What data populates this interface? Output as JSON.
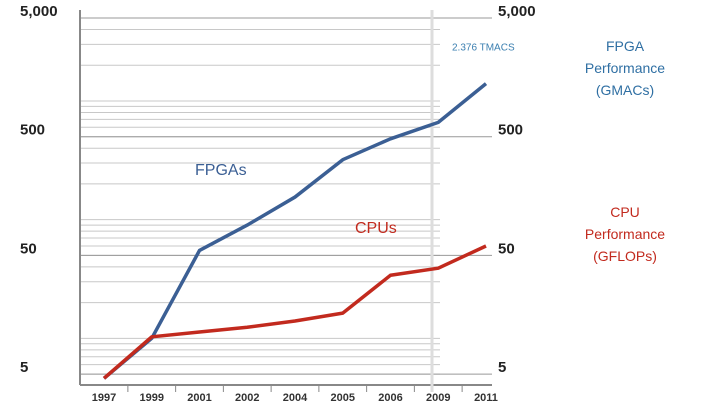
{
  "chart_data": {
    "type": "line",
    "categories": [
      "1997",
      "1999",
      "2001",
      "2002",
      "2004",
      "2005",
      "2006",
      "2009",
      "2011"
    ],
    "series": [
      {
        "name": "FPGAs",
        "color": "#3b5f94",
        "values": [
          4.6,
          10,
          55,
          90,
          155,
          320,
          480,
          660,
          1400
        ]
      },
      {
        "name": "CPUs",
        "color": "#c22a1e",
        "values": [
          4.6,
          10.3,
          11.3,
          12.4,
          14,
          16.3,
          34,
          39,
          60
        ]
      }
    ],
    "log_scale": true,
    "grid": true,
    "minor_grid": true,
    "ylim": [
      4.5,
      5000
    ],
    "yticks": [
      {
        "value": 5,
        "label": "5"
      },
      {
        "value": 50,
        "label": "50"
      },
      {
        "value": 500,
        "label": "500"
      },
      {
        "value": 5000,
        "label": "5,000"
      }
    ],
    "y2lim": [
      4.5,
      5000
    ],
    "y2ticks": [
      {
        "value": 5,
        "label": "5"
      },
      {
        "value": 50,
        "label": "50"
      },
      {
        "value": 500,
        "label": "500"
      },
      {
        "value": 5000,
        "label": "5,000"
      }
    ],
    "annotations": [
      {
        "text": "2.376 TMACS",
        "color": "#3b7fb0"
      }
    ],
    "axis_titles": [
      {
        "lines": [
          "FPGA",
          "Performance",
          "(GMACs)"
        ],
        "color": "#2f6fa3"
      },
      {
        "lines": [
          "CPU",
          "Performance",
          "(GFLOPs)"
        ],
        "color": "#c22a1e"
      }
    ]
  }
}
